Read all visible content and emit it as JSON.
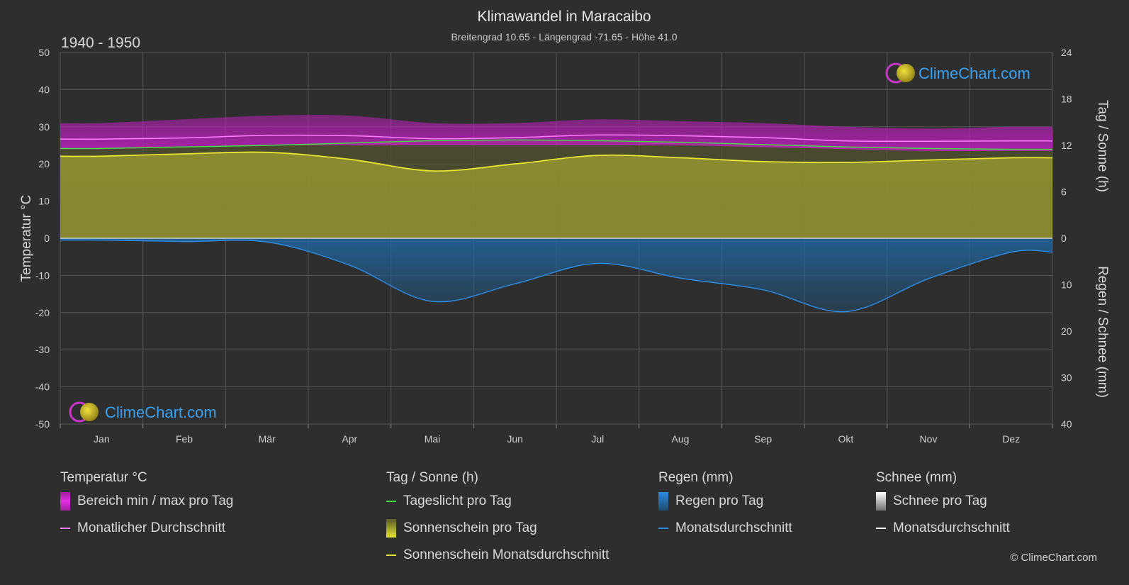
{
  "chart_data": {
    "type": "area",
    "title": "Klimawandel in Maracaibo",
    "subtitle": "Breitengrad 10.65 - Längengrad -71.65 - Höhe 41.0",
    "period": "1940 - 1950",
    "categories": [
      "Jan",
      "Feb",
      "Mär",
      "Apr",
      "Mai",
      "Jun",
      "Jul",
      "Aug",
      "Sep",
      "Okt",
      "Nov",
      "Dez"
    ],
    "y_left": {
      "label": "Temperatur °C",
      "range": [
        -50,
        50
      ],
      "ticks": [
        "50",
        "40",
        "30",
        "20",
        "10",
        "0",
        "-10",
        "-20",
        "-30",
        "-40",
        "-50"
      ]
    },
    "y_right_top": {
      "label": "Tag / Sonne (h)",
      "range": [
        0,
        24
      ],
      "ticks": [
        "24",
        "18",
        "12",
        "6",
        "0"
      ]
    },
    "y_right_bottom": {
      "label": "Regen / Schnee (mm)",
      "range": [
        0,
        40
      ],
      "ticks": [
        "0",
        "10",
        "20",
        "30",
        "40"
      ]
    },
    "grid": true,
    "series": [
      {
        "name": "Bereich min / max pro Tag",
        "unit": "°C",
        "min": [
          24,
          24.5,
          25,
          25,
          25,
          25,
          25,
          25,
          24.5,
          24,
          23.5,
          23.5
        ],
        "max": [
          31,
          32,
          33,
          33,
          31,
          31,
          32,
          31.5,
          31,
          30,
          29.5,
          30
        ]
      },
      {
        "name": "Monatlicher Durchschnitt",
        "unit": "°C",
        "values": [
          26.7,
          27,
          27.7,
          27.6,
          26.8,
          27.1,
          27.8,
          27.6,
          27.1,
          26.2,
          26.1,
          26.2
        ]
      },
      {
        "name": "Tageslicht pro Tag",
        "unit": "h",
        "values": [
          11.6,
          11.8,
          12.0,
          12.3,
          12.6,
          12.7,
          12.6,
          12.4,
          12.1,
          11.8,
          11.6,
          11.5
        ]
      },
      {
        "name": "Sonnenschein Monatsdurchschnitt",
        "unit": "h",
        "values": [
          10.6,
          10.9,
          11.1,
          10.2,
          8.7,
          9.6,
          10.7,
          10.4,
          9.9,
          9.8,
          10.1,
          10.4
        ]
      },
      {
        "name": "Regen Monatsdurchschnitt",
        "unit": "mm",
        "values": [
          0.4,
          0.7,
          0.8,
          5.8,
          13.6,
          9.8,
          5.4,
          8.6,
          11.1,
          15.8,
          8.7,
          3.0
        ]
      }
    ]
  },
  "legend": {
    "temp": {
      "title": "Temperatur °C",
      "items": [
        "Bereich min / max pro Tag",
        "Monatlicher Durchschnitt"
      ]
    },
    "sun": {
      "title": "Tag / Sonne (h)",
      "items": [
        "Tageslicht pro Tag",
        "Sonnenschein pro Tag",
        "Sonnenschein Monatsdurchschnitt"
      ]
    },
    "rain": {
      "title": "Regen (mm)",
      "items": [
        "Regen pro Tag",
        "Monatsdurchschnitt"
      ]
    },
    "snow": {
      "title": "Schnee (mm)",
      "items": [
        "Schnee pro Tag",
        "Monatsdurchschnitt"
      ]
    }
  },
  "brand": {
    "logo_text": "ClimeChart.com",
    "copyright": "© ClimeChart.com"
  },
  "colors": {
    "background": "#2e2e2e",
    "temp_range": "#c81ec8",
    "temp_avg": "#ff7fff",
    "daylight": "#44dd44",
    "sunshine_fill": "#8c8c32",
    "sunshine_avg": "#e6e632",
    "rain": "#1e64a0",
    "rain_avg": "#2c8ae0",
    "snow_avg": "#ffffff",
    "brand_blue": "#3aa0f0"
  }
}
